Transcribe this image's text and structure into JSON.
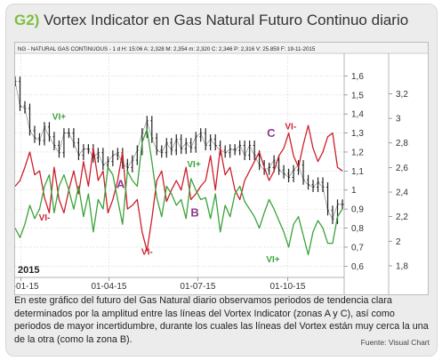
{
  "title": {
    "tag": "G2)",
    "text": "Vortex Indicator en Gas Natural Futuro Continuo diario"
  },
  "chart_header": "NG - NATURAL GAS CONTINUOUS - 1 d  H: 15:06  A: 2,328  M: 2,354  m: 2,320  C: 2,346  P: 2,316  V: 25.859  F: 19-11-2015",
  "chart_data": {
    "type": "line",
    "year_label": "2015",
    "x_ticks": [
      "01-01-15",
      "01-04-15",
      "01-07-15",
      "01-10-15"
    ],
    "y_left_ticks": [
      "0,6",
      "0,7",
      "0,8",
      "0,9",
      "1",
      "1,1",
      "1,2",
      "1,3",
      "1,4",
      "1,5",
      "1,6"
    ],
    "y_left_range": [
      0.55,
      1.7
    ],
    "y_right_ticks": [
      "1,8",
      "2",
      "2,2",
      "2,4",
      "2,6",
      "2,8",
      "3",
      "3,2"
    ],
    "y_right_range": [
      1.72,
      3.5
    ],
    "x_range_days": [
      0,
      335
    ],
    "annotations": [
      {
        "text": "VI+",
        "color": "#3aa33a",
        "x": 45,
        "y": 1.37
      },
      {
        "text": "VI-",
        "color": "#cc2233",
        "x": 30,
        "y": 0.84
      },
      {
        "text": "A",
        "color": "#8b3a8b",
        "x": 108,
        "y": 1.01
      },
      {
        "text": "VI-",
        "color": "#cc2233",
        "x": 135,
        "y": 0.66
      },
      {
        "text": "VI+",
        "color": "#3aa33a",
        "x": 183,
        "y": 1.12
      },
      {
        "text": "B",
        "color": "#8b3a8b",
        "x": 184,
        "y": 0.86
      },
      {
        "text": "C",
        "color": "#8b3a8b",
        "x": 262,
        "y": 1.28
      },
      {
        "text": "VI-",
        "color": "#cc2233",
        "x": 282,
        "y": 1.32
      },
      {
        "text": "VI+",
        "color": "#3aa33a",
        "x": 264,
        "y": 0.62
      }
    ],
    "series": [
      {
        "color": "#222222",
        "axis": "right",
        "style": "ohlc",
        "x": [
          0,
          5,
          10,
          15,
          20,
          25,
          30,
          35,
          40,
          45,
          50,
          55,
          60,
          65,
          70,
          75,
          80,
          85,
          90,
          95,
          100,
          105,
          110,
          115,
          120,
          125,
          130,
          135,
          140,
          145,
          150,
          155,
          160,
          165,
          170,
          175,
          180,
          185,
          190,
          195,
          200,
          205,
          210,
          215,
          220,
          225,
          230,
          235,
          240,
          245,
          250,
          255,
          260,
          265,
          270,
          275,
          280,
          285,
          290,
          295,
          300,
          305,
          310,
          315,
          320,
          325,
          330,
          335
        ],
        "values": [
          3.3,
          3.1,
          3.08,
          2.9,
          2.84,
          2.82,
          2.93,
          2.85,
          2.78,
          2.72,
          2.88,
          2.88,
          2.8,
          2.7,
          2.75,
          2.75,
          2.68,
          2.72,
          2.62,
          2.65,
          2.7,
          2.72,
          2.63,
          2.6,
          2.66,
          2.74,
          2.88,
          2.98,
          2.84,
          2.74,
          2.72,
          2.8,
          2.74,
          2.83,
          2.75,
          2.8,
          2.76,
          2.85,
          2.88,
          2.78,
          2.83,
          2.78,
          2.74,
          2.72,
          2.75,
          2.74,
          2.78,
          2.7,
          2.78,
          2.7,
          2.62,
          2.58,
          2.6,
          2.66,
          2.58,
          2.55,
          2.52,
          2.58,
          2.62,
          2.5,
          2.46,
          2.44,
          2.48,
          2.44,
          2.25,
          2.18,
          2.3,
          2.3
        ]
      },
      {
        "name": "VI-",
        "color": "#cc1f2a",
        "axis": "left",
        "x": [
          0,
          5,
          10,
          15,
          20,
          25,
          30,
          35,
          40,
          45,
          50,
          55,
          60,
          65,
          70,
          75,
          80,
          85,
          90,
          95,
          100,
          105,
          110,
          115,
          120,
          125,
          130,
          135,
          140,
          145,
          150,
          155,
          160,
          165,
          170,
          175,
          180,
          185,
          190,
          195,
          200,
          205,
          210,
          215,
          220,
          225,
          230,
          235,
          240,
          245,
          250,
          255,
          260,
          265,
          270,
          275,
          280,
          285,
          290,
          295,
          300,
          305,
          310,
          315,
          320,
          325,
          330,
          335
        ],
        "values": [
          1.02,
          1.05,
          1.12,
          1.2,
          1.08,
          1.1,
          0.96,
          0.88,
          1.12,
          0.95,
          0.88,
          1.0,
          1.1,
          0.98,
          1.15,
          1.02,
          1.22,
          1.05,
          1.1,
          0.88,
          0.95,
          1.05,
          1.2,
          0.9,
          0.92,
          0.95,
          0.78,
          0.68,
          0.85,
          1.05,
          1.1,
          0.94,
          1.0,
          1.05,
          1.0,
          1.12,
          0.95,
          0.98,
          1.02,
          1.05,
          1.18,
          1.0,
          1.22,
          1.08,
          1.12,
          1.0,
          0.95,
          1.05,
          1.1,
          1.15,
          1.2,
          1.12,
          1.05,
          1.1,
          1.18,
          1.22,
          1.3,
          1.18,
          1.12,
          1.24,
          1.34,
          1.22,
          1.15,
          1.2,
          1.28,
          1.3,
          1.12,
          1.1
        ]
      },
      {
        "name": "VI+",
        "color": "#3aa33a",
        "axis": "left",
        "x": [
          0,
          5,
          10,
          15,
          20,
          25,
          30,
          35,
          40,
          45,
          50,
          55,
          60,
          65,
          70,
          75,
          80,
          85,
          90,
          95,
          100,
          105,
          110,
          115,
          120,
          125,
          130,
          135,
          140,
          145,
          150,
          155,
          160,
          165,
          170,
          175,
          180,
          185,
          190,
          195,
          200,
          205,
          210,
          215,
          220,
          225,
          230,
          235,
          240,
          245,
          250,
          255,
          260,
          265,
          270,
          275,
          280,
          285,
          290,
          295,
          300,
          305,
          310,
          315,
          320,
          325,
          330,
          335
        ],
        "values": [
          0.8,
          0.75,
          0.82,
          0.92,
          0.85,
          0.9,
          1.02,
          1.08,
          0.88,
          1.02,
          1.08,
          1.0,
          0.9,
          1.02,
          0.86,
          0.98,
          0.78,
          0.95,
          0.9,
          1.12,
          1.08,
          0.95,
          0.82,
          1.1,
          1.05,
          1.02,
          1.25,
          1.32,
          1.15,
          0.96,
          0.86,
          1.02,
          0.98,
          0.92,
          0.95,
          0.85,
          1.06,
          1.0,
          0.95,
          0.96,
          0.85,
          0.98,
          0.78,
          0.92,
          0.86,
          0.98,
          1.02,
          0.94,
          0.9,
          0.86,
          0.8,
          0.88,
          0.95,
          0.9,
          0.84,
          0.78,
          0.7,
          0.82,
          0.86,
          0.76,
          0.66,
          0.78,
          0.84,
          0.8,
          0.72,
          0.72,
          0.86,
          0.9
        ]
      }
    ]
  },
  "caption": "En este gráfico del futuro del Gas Natural diario observamos periodos de tendencia clara determinados por la amplitud entre las líneas del Vortex Indicator (zonas A y C), así como periodos de mayor incertidumbre, durante los cuales las líneas del Vortex están muy cerca la una de la otra (como la zona B).",
  "source": "Fuente: Visual Chart"
}
